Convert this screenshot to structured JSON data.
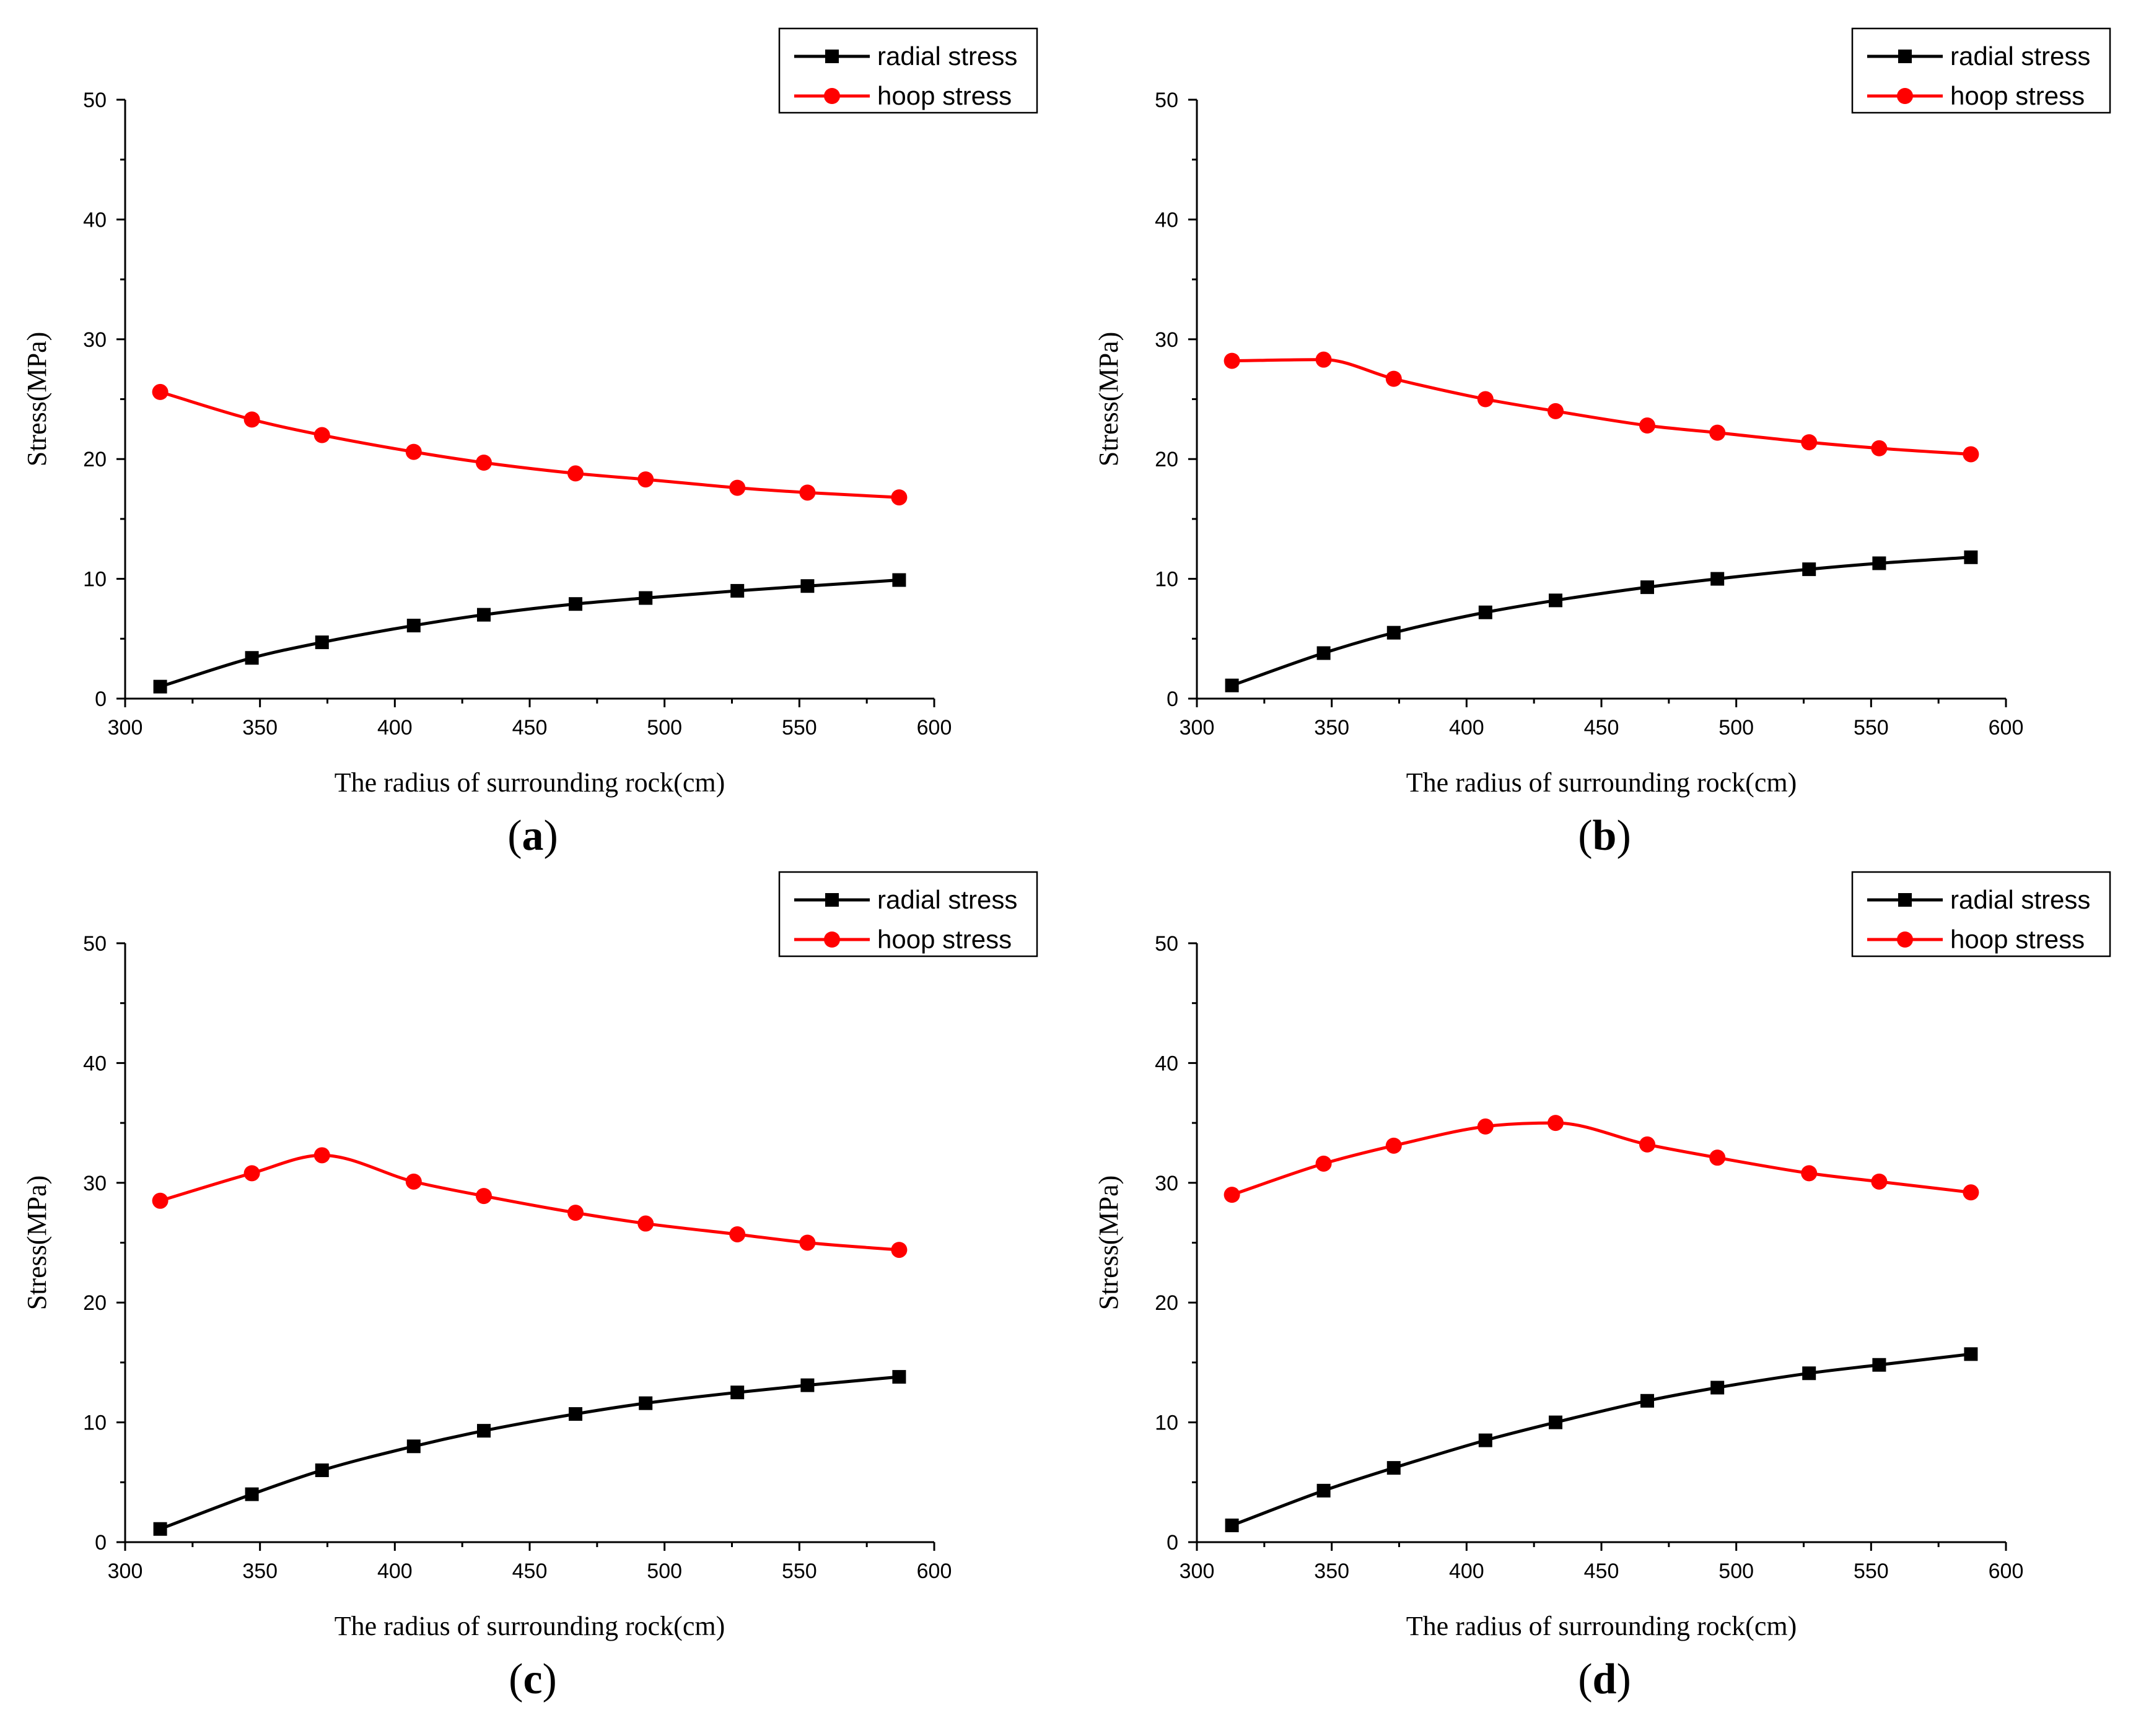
{
  "colors": {
    "radial": "#000000",
    "hoop": "#ff0000"
  },
  "chart_data": [
    {
      "panel": "a",
      "type": "line",
      "xlabel": "The radius of surrounding rock(cm)",
      "ylabel": "Stress(MPa)",
      "xlim": [
        300,
        600
      ],
      "ylim": [
        0,
        50
      ],
      "xticks": [
        300,
        350,
        400,
        450,
        500,
        550,
        600
      ],
      "yticks": [
        0,
        10,
        20,
        30,
        40,
        50
      ],
      "legend": "top-right",
      "x": [
        313,
        347,
        373,
        407,
        433,
        467,
        493,
        527,
        553,
        587
      ],
      "series": [
        {
          "name": "radial stress",
          "marker": "square",
          "color": "#000000",
          "values": [
            1.0,
            3.4,
            4.7,
            6.1,
            7.0,
            7.9,
            8.4,
            9.0,
            9.4,
            9.9
          ]
        },
        {
          "name": "hoop stress",
          "marker": "circle",
          "color": "#ff0000",
          "values": [
            25.6,
            23.3,
            22.0,
            20.6,
            19.7,
            18.8,
            18.3,
            17.6,
            17.2,
            16.8
          ]
        }
      ]
    },
    {
      "panel": "b",
      "type": "line",
      "xlabel": "The radius of surrounding rock(cm)",
      "ylabel": "Stress(MPa)",
      "xlim": [
        300,
        600
      ],
      "ylim": [
        0,
        50
      ],
      "xticks": [
        300,
        350,
        400,
        450,
        500,
        550,
        600
      ],
      "yticks": [
        0,
        10,
        20,
        30,
        40,
        50
      ],
      "legend": "top-right",
      "x": [
        313,
        347,
        373,
        407,
        433,
        467,
        493,
        527,
        553,
        587
      ],
      "series": [
        {
          "name": "radial stress",
          "marker": "square",
          "color": "#000000",
          "values": [
            1.1,
            3.8,
            5.5,
            7.2,
            8.2,
            9.3,
            10.0,
            10.8,
            11.3,
            11.8
          ]
        },
        {
          "name": "hoop stress",
          "marker": "circle",
          "color": "#ff0000",
          "values": [
            28.2,
            28.3,
            26.7,
            25.0,
            24.0,
            22.8,
            22.2,
            21.4,
            20.9,
            20.4
          ]
        }
      ]
    },
    {
      "panel": "c",
      "type": "line",
      "xlabel": "The radius of surrounding rock(cm)",
      "ylabel": "Stress(MPa)",
      "xlim": [
        300,
        600
      ],
      "ylim": [
        0,
        50
      ],
      "xticks": [
        300,
        350,
        400,
        450,
        500,
        550,
        600
      ],
      "yticks": [
        0,
        10,
        20,
        30,
        40,
        50
      ],
      "legend": "top-right",
      "x": [
        313,
        347,
        373,
        407,
        433,
        467,
        493,
        527,
        553,
        587
      ],
      "series": [
        {
          "name": "radial stress",
          "marker": "square",
          "color": "#000000",
          "values": [
            1.1,
            4.0,
            6.0,
            8.0,
            9.3,
            10.7,
            11.6,
            12.5,
            13.1,
            13.8
          ]
        },
        {
          "name": "hoop stress",
          "marker": "circle",
          "color": "#ff0000",
          "values": [
            28.5,
            30.8,
            32.3,
            30.1,
            28.9,
            27.5,
            26.6,
            25.7,
            25.0,
            24.4
          ]
        }
      ]
    },
    {
      "panel": "d",
      "type": "line",
      "xlabel": "The radius of surrounding rock(cm)",
      "ylabel": "Stress(MPa)",
      "xlim": [
        300,
        600
      ],
      "ylim": [
        0,
        50
      ],
      "xticks": [
        300,
        350,
        400,
        450,
        500,
        550,
        600
      ],
      "yticks": [
        0,
        10,
        20,
        30,
        40,
        50
      ],
      "legend": "top-right",
      "x": [
        313,
        347,
        373,
        407,
        433,
        467,
        493,
        527,
        553,
        587
      ],
      "series": [
        {
          "name": "radial stress",
          "marker": "square",
          "color": "#000000",
          "values": [
            1.4,
            4.3,
            6.2,
            8.5,
            10.0,
            11.8,
            12.9,
            14.1,
            14.8,
            15.7
          ]
        },
        {
          "name": "hoop stress",
          "marker": "circle",
          "color": "#ff0000",
          "values": [
            29.0,
            31.6,
            33.1,
            34.7,
            35.0,
            33.2,
            32.1,
            30.8,
            30.1,
            29.2
          ]
        }
      ]
    }
  ]
}
